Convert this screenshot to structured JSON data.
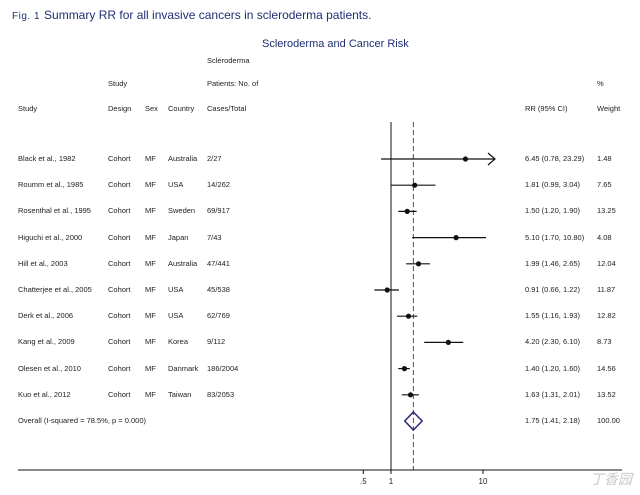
{
  "figure": {
    "label": "Fig. 1",
    "caption": "Summary RR for all invasive cancers in scleroderma patients."
  },
  "chart_data": {
    "type": "forest",
    "title": "Scleroderma and Cancer Risk",
    "headers": {
      "study_group": "Study",
      "scleroderma": "Scleroderma",
      "patients_no_of": "Patients: No. of",
      "percent": "%",
      "study": "Study",
      "design": "Design",
      "sex": "Sex",
      "country": "Country",
      "cases_total": "Cases/Total",
      "rr_ci": "RR (95% CI)",
      "weight": "Weight"
    },
    "studies": [
      {
        "study": "Black et al., 1982",
        "design": "Cohort",
        "sex": "MF",
        "country": "Australia",
        "cases": "2/27",
        "rr": 6.45,
        "lo": 0.78,
        "hi": 23.29,
        "rr_text": "6.45 (0.78, 23.29)",
        "weight": "1.48"
      },
      {
        "study": "Roumm et al., 1985",
        "design": "Cohort",
        "sex": "MF",
        "country": "USA",
        "cases": "14/262",
        "rr": 1.81,
        "lo": 0.99,
        "hi": 3.04,
        "rr_text": "1.81 (0.99, 3.04)",
        "weight": "7.65"
      },
      {
        "study": "Rosenthal et al., 1995",
        "design": "Cohort",
        "sex": "MF",
        "country": "Sweden",
        "cases": "69/917",
        "rr": 1.5,
        "lo": 1.2,
        "hi": 1.9,
        "rr_text": "1.50 (1.20, 1.90)",
        "weight": "13.25"
      },
      {
        "study": "Higuchi et al., 2000",
        "design": "Cohort",
        "sex": "MF",
        "country": "Japan",
        "cases": "7/43",
        "rr": 5.1,
        "lo": 1.7,
        "hi": 10.8,
        "rr_text": "5.10 (1.70, 10.80)",
        "weight": "4.08"
      },
      {
        "study": "Hill et al., 2003",
        "design": "Cohort",
        "sex": "MF",
        "country": "Australia",
        "cases": "47/441",
        "rr": 1.99,
        "lo": 1.46,
        "hi": 2.65,
        "rr_text": "1.99 (1.46, 2.65)",
        "weight": "12.04"
      },
      {
        "study": "Chatterjee et al., 2005",
        "design": "Cohort",
        "sex": "MF",
        "country": "USA",
        "cases": "45/538",
        "rr": 0.91,
        "lo": 0.66,
        "hi": 1.22,
        "rr_text": "0.91 (0.66, 1.22)",
        "weight": "11.87"
      },
      {
        "study": "Derk et al., 2006",
        "design": "Cohort",
        "sex": "MF",
        "country": "USA",
        "cases": "62/769",
        "rr": 1.55,
        "lo": 1.16,
        "hi": 1.93,
        "rr_text": "1.55 (1.16, 1.93)",
        "weight": "12.82"
      },
      {
        "study": "Kang et al., 2009",
        "design": "Cohort",
        "sex": "MF",
        "country": "Korea",
        "cases": "9/112",
        "rr": 4.2,
        "lo": 2.3,
        "hi": 6.1,
        "rr_text": "4.20 (2.30, 6.10)",
        "weight": "8.73"
      },
      {
        "study": "Olesen et al., 2010",
        "design": "Cohort",
        "sex": "MF",
        "country": "Danmark",
        "cases": "186/2004",
        "rr": 1.4,
        "lo": 1.2,
        "hi": 1.6,
        "rr_text": "1.40 (1.20, 1.60)",
        "weight": "14.56"
      },
      {
        "study": "Kuo et al., 2012",
        "design": "Cohort",
        "sex": "MF",
        "country": "Taiwan",
        "cases": "83/2053",
        "rr": 1.63,
        "lo": 1.31,
        "hi": 2.01,
        "rr_text": "1.63 (1.31, 2.01)",
        "weight": "13.52"
      }
    ],
    "overall": {
      "label": "Overall  (I-squared = 78.5%, p = 0.000)",
      "rr": 1.75,
      "lo": 1.41,
      "hi": 2.18,
      "rr_text": "1.75 (1.41, 2.18)",
      "weight": "100.00"
    },
    "x_axis": {
      "scale": "log",
      "ticks": [
        0.5,
        1,
        10
      ],
      "tick_labels": [
        ".5",
        "1",
        "10"
      ],
      "range": [
        0.3,
        13.5
      ]
    },
    "null_line": 1,
    "colors": {
      "title": "#1f2f73",
      "overall_diamond": "#2a2a7a",
      "summary_line": "#b22222",
      "marks": "#111111"
    }
  },
  "watermark": "丁香园"
}
